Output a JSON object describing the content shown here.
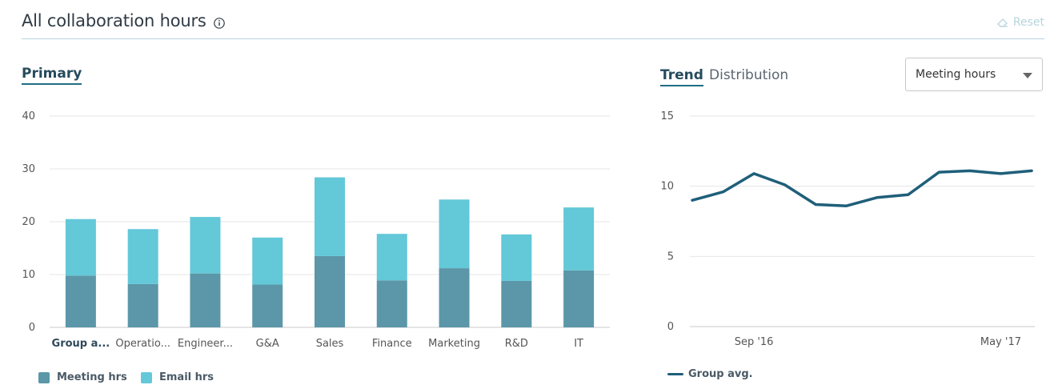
{
  "header": {
    "title": "All collaboration hours",
    "reset_label": "Reset"
  },
  "left_panel": {
    "tab_label": "Primary"
  },
  "right_panel": {
    "tabs": [
      {
        "label": "Trend",
        "active": true
      },
      {
        "label": "Distribution",
        "active": false
      }
    ],
    "dropdown": {
      "selected": "Meeting hours"
    }
  },
  "colors": {
    "meeting": "#5b97a8",
    "email": "#63c8d8",
    "trend": "#1f5f7a"
  },
  "chart_data": [
    {
      "type": "bar",
      "stacked": true,
      "categories": [
        "Group a...",
        "Operatio...",
        "Engineer...",
        "G&A",
        "Sales",
        "Finance",
        "Marketing",
        "R&D",
        "IT"
      ],
      "series": [
        {
          "name": "Meeting hrs",
          "values": [
            9.8,
            8.2,
            10.2,
            8.1,
            13.5,
            8.9,
            11.2,
            8.8,
            10.8
          ]
        },
        {
          "name": "Email hrs",
          "values": [
            10.7,
            10.4,
            10.7,
            8.9,
            14.9,
            8.8,
            13.0,
            8.8,
            11.9
          ]
        }
      ],
      "yticks": [
        0,
        10,
        20,
        30,
        40
      ],
      "ylim": [
        0,
        40
      ],
      "legend": "bottom-left",
      "grid": true
    },
    {
      "type": "line",
      "x": [
        "Jul '16",
        "Aug '16",
        "Sep '16",
        "Oct '16",
        "Nov '16",
        "Dec '16",
        "Jan '17",
        "Feb '17",
        "Mar '17",
        "Apr '17",
        "May '17",
        "Jun '17"
      ],
      "xticks": [
        "Sep '16",
        "May '17"
      ],
      "series": [
        {
          "name": "Group avg.",
          "values": [
            9.0,
            9.6,
            10.9,
            10.1,
            8.7,
            8.6,
            9.2,
            9.4,
            11.0,
            11.1,
            10.9,
            11.1
          ]
        }
      ],
      "yticks": [
        0,
        5,
        10,
        15
      ],
      "ylim": [
        0,
        15
      ],
      "legend": "bottom-left",
      "grid": true
    }
  ]
}
